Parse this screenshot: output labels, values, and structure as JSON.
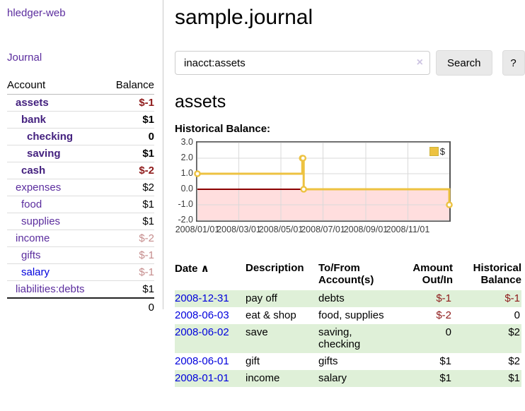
{
  "app": {
    "brand": "hledger-web",
    "nav_journal": "Journal"
  },
  "sidebar": {
    "header": {
      "account": "Account",
      "balance": "Balance"
    },
    "accounts": [
      {
        "name": "assets",
        "indent": 1,
        "bold": true,
        "balance": "$-1",
        "balance_style": "neg"
      },
      {
        "name": "bank",
        "indent": 2,
        "bold": true,
        "balance": "$1",
        "balance_style": "normal"
      },
      {
        "name": "checking",
        "indent": 3,
        "bold": true,
        "balance": "0",
        "balance_style": "normal"
      },
      {
        "name": "saving",
        "indent": 3,
        "bold": true,
        "balance": "$1",
        "balance_style": "normal"
      },
      {
        "name": "cash",
        "indent": 2,
        "bold": true,
        "balance": "$-2",
        "balance_style": "neg"
      },
      {
        "name": "expenses",
        "indent": 1,
        "bold": false,
        "balance": "$2",
        "balance_style": "normal"
      },
      {
        "name": "food",
        "indent": 2,
        "bold": false,
        "balance": "$1",
        "balance_style": "normal"
      },
      {
        "name": "supplies",
        "indent": 2,
        "bold": false,
        "balance": "$1",
        "balance_style": "normal"
      },
      {
        "name": "income",
        "indent": 1,
        "bold": false,
        "balance": "$-2",
        "balance_style": "neg-soft"
      },
      {
        "name": "gifts",
        "indent": 2,
        "bold": false,
        "balance": "$-1",
        "balance_style": "neg-soft"
      },
      {
        "name": "salary",
        "indent": 2,
        "bold": false,
        "link_blue": true,
        "balance": "$-1",
        "balance_style": "neg-soft"
      },
      {
        "name": "liabilities:debts",
        "indent": 1,
        "bold": false,
        "balance": "$1",
        "balance_style": "normal"
      }
    ],
    "total": "0"
  },
  "main": {
    "title": "sample.journal",
    "search": {
      "value": "inacct:assets",
      "clear_icon": "×",
      "search_button": "Search",
      "help_button": "?"
    },
    "account_heading": "assets",
    "section_label": "Historical Balance:"
  },
  "chart_data": {
    "type": "line",
    "style": "step",
    "title": "Historical Balance",
    "legend": {
      "label": "$",
      "position": "top-right"
    },
    "series": [
      {
        "name": "$",
        "color": "#EDC240",
        "points": [
          [
            "2008-01-01",
            1
          ],
          [
            "2008-06-01",
            2
          ],
          [
            "2008-06-02",
            2
          ],
          [
            "2008-06-03",
            0
          ],
          [
            "2008-12-31",
            -1
          ]
        ]
      }
    ],
    "x_range": [
      "2008-01-01",
      "2008-12-31"
    ],
    "ylim": [
      -2,
      3
    ],
    "y_ticks": [
      3,
      2,
      1,
      0,
      -1,
      -2
    ],
    "y_tick_labels": [
      "3.0",
      "2.0",
      "1.0",
      "0.0",
      "-1.0",
      "-2.0"
    ],
    "x_ticks": [
      "2008-01-01",
      "2008-03-01",
      "2008-05-01",
      "2008-07-01",
      "2008-09-01",
      "2008-11-01"
    ],
    "x_tick_labels": [
      "2008/01/01",
      "2008/03/01",
      "2008/05/01",
      "2008/07/01",
      "2008/09/01",
      "2008/11/01"
    ],
    "grid": true,
    "negative_fill": "#ffdede",
    "zero_line_color": "#8b0000"
  },
  "register": {
    "headers": [
      {
        "label": "Date",
        "icon": "∧",
        "align": "left"
      },
      {
        "label": "Description",
        "align": "left"
      },
      {
        "label": "To/From Account(s)",
        "align": "left"
      },
      {
        "label": "Amount Out/In",
        "align": "right"
      },
      {
        "label": "Historical Balance",
        "align": "right"
      }
    ],
    "rows": [
      {
        "date": "2008-12-31",
        "description": "pay off",
        "accounts": "debts",
        "amount": "$-1",
        "amount_neg": true,
        "balance": "$-1",
        "balance_neg": true
      },
      {
        "date": "2008-06-03",
        "description": "eat & shop",
        "accounts": "food, supplies",
        "amount": "$-2",
        "amount_neg": true,
        "balance": "0",
        "balance_neg": false
      },
      {
        "date": "2008-06-02",
        "description": "save",
        "accounts": "saving, checking",
        "amount": "0",
        "amount_neg": false,
        "balance": "$2",
        "balance_neg": false
      },
      {
        "date": "2008-06-01",
        "description": "gift",
        "accounts": "gifts",
        "amount": "$1",
        "amount_neg": false,
        "balance": "$2",
        "balance_neg": false
      },
      {
        "date": "2008-01-01",
        "description": "income",
        "accounts": "salary",
        "amount": "$1",
        "amount_neg": false,
        "balance": "$1",
        "balance_neg": false
      }
    ]
  },
  "colors": {
    "accent_purple": "#5b2d9e",
    "link_blue": "#0000dd",
    "negative": "#8e1a1a",
    "negative_soft": "#c58c8c",
    "row_green": "#dff0d8",
    "chart_line": "#EDC240",
    "chart_negative_fill": "#ffdede",
    "chart_zero_line": "#8b0000"
  }
}
